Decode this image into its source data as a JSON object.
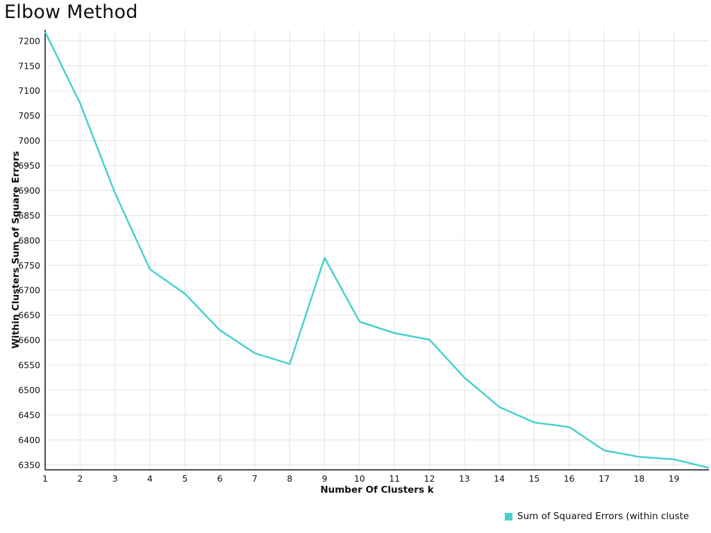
{
  "chart_data": {
    "type": "line",
    "title": "Elbow Method",
    "xlabel": "Number Of Clusters k",
    "ylabel": "Within Clusters Sum of Square Errors",
    "legend": [
      "Sum of Squared Errors (within cluste"
    ],
    "legend_position": "bottom-right",
    "line_color": "#48D1CC",
    "grid": true,
    "x": [
      1,
      2,
      3,
      4,
      5,
      6,
      7,
      8,
      9,
      10,
      11,
      12,
      13,
      14,
      15,
      16,
      17,
      18,
      19,
      20
    ],
    "y": [
      7218,
      7075,
      6895,
      6742,
      6693,
      6620,
      6574,
      6552,
      6765,
      6637,
      6614,
      6601,
      6525,
      6466,
      6435,
      6426,
      6379,
      6366,
      6361,
      6344
    ],
    "xticks": [
      1,
      2,
      3,
      4,
      5,
      6,
      7,
      8,
      9,
      10,
      11,
      12,
      13,
      14,
      15,
      16,
      17,
      18,
      19
    ],
    "yticks": [
      6350,
      6400,
      6450,
      6500,
      6550,
      6600,
      6650,
      6700,
      6750,
      6800,
      6850,
      6900,
      6950,
      7000,
      7050,
      7100,
      7150,
      7200
    ],
    "xlim": [
      1,
      20
    ],
    "ylim": [
      6340,
      7222
    ]
  }
}
